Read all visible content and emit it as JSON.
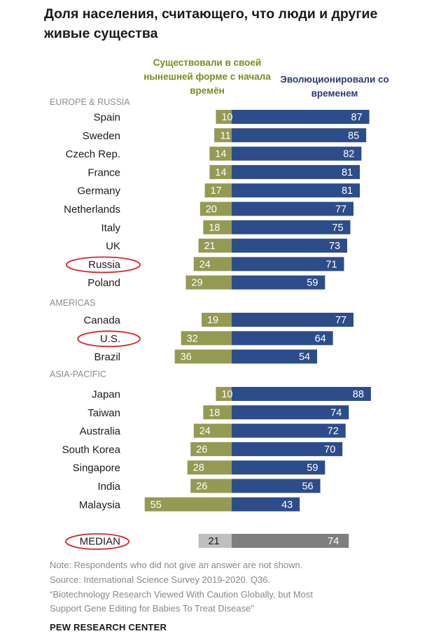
{
  "title": "Доля населения, считающего, что люди и другие живые существа",
  "legend": {
    "existed_label": "Существовали в своей нынешней форме с начала времён",
    "evolved_label": "Эволюционировали со временем"
  },
  "colors": {
    "existed": "#949a52",
    "evolved": "#2d4c8a",
    "median_existed": "#bfbfbf",
    "median_evolved": "#7f7f7f",
    "highlight": "#d9242b"
  },
  "chart_data": {
    "type": "bar",
    "orientation": "horizontal-diverging",
    "series": [
      {
        "name": "Существовали в своей нынешней форме с начала времён",
        "key": "existed"
      },
      {
        "name": "Эволюционировали со временем",
        "key": "evolved"
      }
    ],
    "groups": [
      {
        "name": "EUROPE & RUSSIA",
        "rows": [
          {
            "country": "Spain",
            "existed": 10,
            "evolved": 87
          },
          {
            "country": "Sweden",
            "existed": 11,
            "evolved": 85
          },
          {
            "country": "Czech Rep.",
            "existed": 14,
            "evolved": 82
          },
          {
            "country": "France",
            "existed": 14,
            "evolved": 81
          },
          {
            "country": "Germany",
            "existed": 17,
            "evolved": 81
          },
          {
            "country": "Netherlands",
            "existed": 20,
            "evolved": 77
          },
          {
            "country": "Italy",
            "existed": 18,
            "evolved": 75
          },
          {
            "country": "UK",
            "existed": 21,
            "evolved": 73
          },
          {
            "country": "Russia",
            "existed": 24,
            "evolved": 71,
            "highlighted": true
          },
          {
            "country": "Poland",
            "existed": 29,
            "evolved": 59
          }
        ]
      },
      {
        "name": "AMERICAS",
        "rows": [
          {
            "country": "Canada",
            "existed": 19,
            "evolved": 77
          },
          {
            "country": "U.S.",
            "existed": 32,
            "evolved": 64,
            "highlighted": true
          },
          {
            "country": "Brazil",
            "existed": 36,
            "evolved": 54
          }
        ]
      },
      {
        "name": "ASIA-PACIFIC",
        "rows": [
          {
            "country": "Japan",
            "existed": 10,
            "evolved": 88
          },
          {
            "country": "Taiwan",
            "existed": 18,
            "evolved": 74
          },
          {
            "country": "Australia",
            "existed": 24,
            "evolved": 72
          },
          {
            "country": "South Korea",
            "existed": 26,
            "evolved": 70
          },
          {
            "country": "Singapore",
            "existed": 28,
            "evolved": 59
          },
          {
            "country": "India",
            "existed": 26,
            "evolved": 56
          },
          {
            "country": "Malaysia",
            "existed": 55,
            "evolved": 43
          }
        ]
      }
    ],
    "median": {
      "label": "MEDIAN",
      "existed": 21,
      "evolved": 74,
      "highlighted": true
    }
  },
  "footer": {
    "note": "Note: Respondents who did not give an answer are not shown.",
    "source": "Source: International Science Survey 2019-2020. Q36.",
    "publication_line1": "“Biotechnology Research Viewed With Caution Globally, but Most",
    "publication_line2": "Support Gene Editing for Babies To Treat Disease”",
    "brand": "PEW RESEARCH CENTER"
  }
}
